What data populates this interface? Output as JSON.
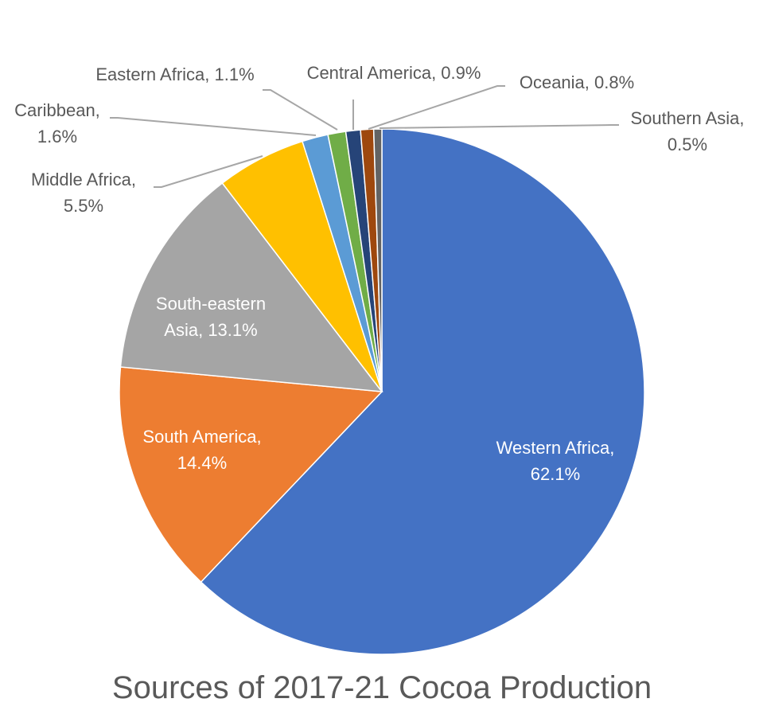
{
  "chart_data": {
    "type": "pie",
    "title": "Sources of 2017-21 Cocoa Production",
    "start": "12 o'clock, clockwise",
    "slices": [
      {
        "label": "Western Africa",
        "value": 62.1,
        "text": "62.1%",
        "color": "#4472C4"
      },
      {
        "label": "South America",
        "value": 14.4,
        "text": "14.4%",
        "color": "#ED7D31"
      },
      {
        "label": "South-eastern Asia",
        "value": 13.1,
        "text": "13.1%",
        "color": "#A5A5A5"
      },
      {
        "label": "Middle Africa",
        "value": 5.5,
        "text": "5.5%",
        "color": "#FFC000"
      },
      {
        "label": "Caribbean",
        "value": 1.6,
        "text": "1.6%",
        "color": "#5B9BD5"
      },
      {
        "label": "Eastern Africa",
        "value": 1.1,
        "text": "1.1%",
        "color": "#70AD47"
      },
      {
        "label": "Central America",
        "value": 0.9,
        "text": "0.9%",
        "color": "#264478"
      },
      {
        "label": "Oceania",
        "value": 0.8,
        "text": "0.8%",
        "color": "#9E480E"
      },
      {
        "label": "Southern Asia",
        "value": 0.5,
        "text": "0.5%",
        "color": "#636363"
      }
    ]
  }
}
